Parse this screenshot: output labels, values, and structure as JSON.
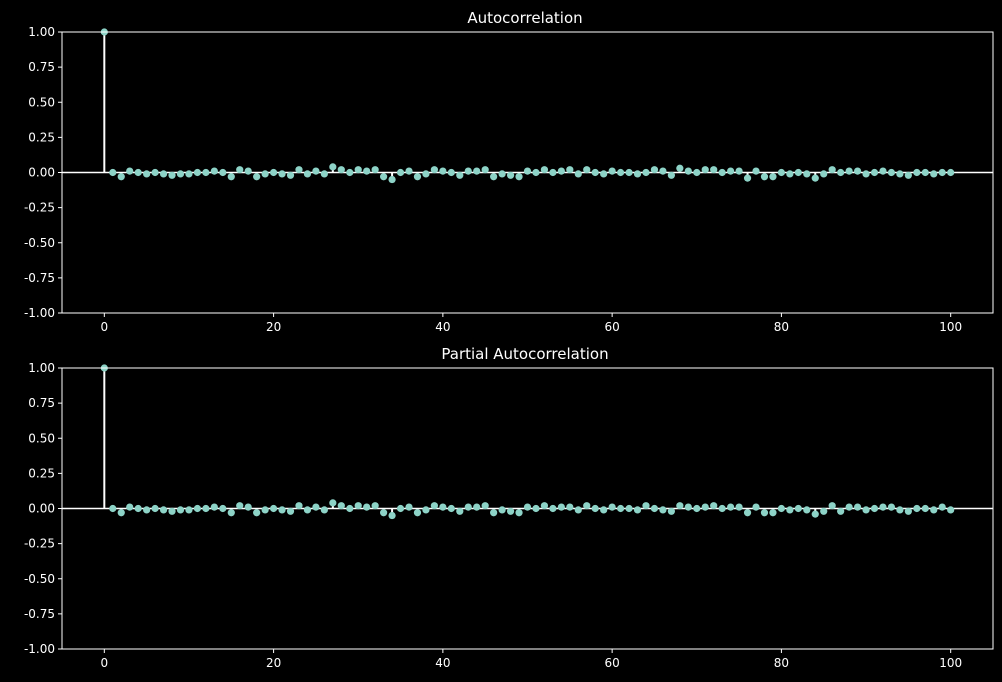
{
  "colors": {
    "background": "#000000",
    "axes": "#ffffff",
    "stem": "#ffffff",
    "marker": "#8dd3c7",
    "zero_line": "#ffffff"
  },
  "chart_data": [
    {
      "type": "scatter",
      "title": "Autocorrelation",
      "xlabel": "",
      "ylabel": "",
      "xlim": [
        -5,
        105
      ],
      "ylim": [
        -1.0,
        1.0
      ],
      "xticks": [
        "0",
        "20",
        "40",
        "60",
        "80",
        "100"
      ],
      "yticks": [
        "1.00",
        "0.75",
        "0.50",
        "0.25",
        "0.00",
        "-0.25",
        "-0.50",
        "-0.75",
        "-1.00"
      ],
      "grid": false,
      "x": [
        0,
        1,
        2,
        3,
        4,
        5,
        6,
        7,
        8,
        9,
        10,
        11,
        12,
        13,
        14,
        15,
        16,
        17,
        18,
        19,
        20,
        21,
        22,
        23,
        24,
        25,
        26,
        27,
        28,
        29,
        30,
        31,
        32,
        33,
        34,
        35,
        36,
        37,
        38,
        39,
        40,
        41,
        42,
        43,
        44,
        45,
        46,
        47,
        48,
        49,
        50,
        51,
        52,
        53,
        54,
        55,
        56,
        57,
        58,
        59,
        60,
        61,
        62,
        63,
        64,
        65,
        66,
        67,
        68,
        69,
        70,
        71,
        72,
        73,
        74,
        75,
        76,
        77,
        78,
        79,
        80,
        81,
        82,
        83,
        84,
        85,
        86,
        87,
        88,
        89,
        90,
        91,
        92,
        93,
        94,
        95,
        96,
        97,
        98,
        99,
        100
      ],
      "values": [
        1.0,
        0.0,
        -0.03,
        0.01,
        0.0,
        -0.01,
        0.0,
        -0.01,
        -0.02,
        -0.01,
        -0.01,
        0.0,
        0.0,
        0.01,
        0.0,
        -0.03,
        0.02,
        0.01,
        -0.03,
        -0.01,
        0.0,
        -0.01,
        -0.02,
        0.02,
        -0.01,
        0.01,
        -0.01,
        0.04,
        0.02,
        0.0,
        0.02,
        0.01,
        0.02,
        -0.03,
        -0.05,
        0.0,
        0.01,
        -0.03,
        -0.01,
        0.02,
        0.01,
        0.0,
        -0.02,
        0.01,
        0.01,
        0.02,
        -0.03,
        -0.01,
        -0.02,
        -0.03,
        0.01,
        0.0,
        0.02,
        0.0,
        0.01,
        0.02,
        -0.01,
        0.02,
        0.0,
        -0.01,
        0.01,
        0.0,
        0.0,
        -0.01,
        0.0,
        0.02,
        0.01,
        -0.02,
        0.03,
        0.01,
        0.0,
        0.02,
        0.02,
        0.0,
        0.01,
        0.01,
        -0.04,
        0.01,
        -0.03,
        -0.03,
        0.0,
        -0.01,
        0.0,
        -0.01,
        -0.04,
        -0.01,
        0.02,
        0.0,
        0.01,
        0.01,
        -0.01,
        0.0,
        0.01,
        0.0,
        -0.01,
        -0.02,
        0.0,
        0.0,
        -0.01,
        0.0,
        0.0
      ]
    },
    {
      "type": "scatter",
      "title": "Partial Autocorrelation",
      "xlabel": "",
      "ylabel": "",
      "xlim": [
        -5,
        105
      ],
      "ylim": [
        -1.0,
        1.0
      ],
      "xticks": [
        "0",
        "20",
        "40",
        "60",
        "80",
        "100"
      ],
      "yticks": [
        "1.00",
        "0.75",
        "0.50",
        "0.25",
        "0.00",
        "-0.25",
        "-0.50",
        "-0.75",
        "-1.00"
      ],
      "grid": false,
      "x": [
        0,
        1,
        2,
        3,
        4,
        5,
        6,
        7,
        8,
        9,
        10,
        11,
        12,
        13,
        14,
        15,
        16,
        17,
        18,
        19,
        20,
        21,
        22,
        23,
        24,
        25,
        26,
        27,
        28,
        29,
        30,
        31,
        32,
        33,
        34,
        35,
        36,
        37,
        38,
        39,
        40,
        41,
        42,
        43,
        44,
        45,
        46,
        47,
        48,
        49,
        50,
        51,
        52,
        53,
        54,
        55,
        56,
        57,
        58,
        59,
        60,
        61,
        62,
        63,
        64,
        65,
        66,
        67,
        68,
        69,
        70,
        71,
        72,
        73,
        74,
        75,
        76,
        77,
        78,
        79,
        80,
        81,
        82,
        83,
        84,
        85,
        86,
        87,
        88,
        89,
        90,
        91,
        92,
        93,
        94,
        95,
        96,
        97,
        98,
        99,
        100
      ],
      "values": [
        1.0,
        0.0,
        -0.03,
        0.01,
        0.0,
        -0.01,
        0.0,
        -0.01,
        -0.02,
        -0.01,
        -0.01,
        0.0,
        0.0,
        0.01,
        0.0,
        -0.03,
        0.02,
        0.01,
        -0.03,
        -0.01,
        0.0,
        -0.01,
        -0.02,
        0.02,
        -0.01,
        0.01,
        -0.01,
        0.04,
        0.02,
        0.0,
        0.02,
        0.01,
        0.02,
        -0.03,
        -0.05,
        0.0,
        0.01,
        -0.03,
        -0.01,
        0.02,
        0.01,
        0.0,
        -0.02,
        0.01,
        0.01,
        0.02,
        -0.03,
        -0.01,
        -0.02,
        -0.03,
        0.01,
        0.0,
        0.02,
        0.0,
        0.01,
        0.01,
        -0.01,
        0.02,
        0.0,
        -0.01,
        0.01,
        0.0,
        0.0,
        -0.01,
        0.02,
        0.0,
        -0.01,
        -0.02,
        0.02,
        0.01,
        0.0,
        0.01,
        0.02,
        0.0,
        0.01,
        0.01,
        -0.03,
        0.01,
        -0.03,
        -0.03,
        0.0,
        -0.01,
        0.0,
        -0.01,
        -0.04,
        -0.02,
        0.02,
        -0.02,
        0.01,
        0.01,
        -0.01,
        0.0,
        0.01,
        0.01,
        -0.01,
        -0.02,
        0.0,
        0.0,
        -0.01,
        0.01,
        -0.01
      ]
    }
  ]
}
